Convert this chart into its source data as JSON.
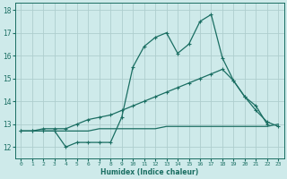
{
  "xlabel": "Humidex (Indice chaleur)",
  "bg_color": "#ceeaea",
  "grid_color": "#aecece",
  "line_color": "#1a6e62",
  "xlim": [
    -0.5,
    23.5
  ],
  "ylim": [
    11.5,
    18.3
  ],
  "yticks": [
    12,
    13,
    14,
    15,
    16,
    17,
    18
  ],
  "xticks": [
    0,
    1,
    2,
    3,
    4,
    5,
    6,
    7,
    8,
    9,
    10,
    11,
    12,
    13,
    14,
    15,
    16,
    17,
    18,
    19,
    20,
    21,
    22,
    23
  ],
  "series1_x": [
    0,
    1,
    2,
    3,
    4,
    5,
    6,
    7,
    8,
    9,
    10,
    11,
    12,
    13,
    14,
    15,
    16,
    17,
    18,
    19,
    20,
    21,
    22,
    23
  ],
  "series1_y": [
    12.7,
    12.7,
    12.7,
    12.7,
    12.0,
    12.2,
    12.2,
    12.2,
    12.2,
    13.3,
    15.5,
    16.4,
    16.8,
    17.0,
    16.1,
    16.5,
    17.5,
    17.8,
    15.9,
    14.9,
    14.2,
    13.8,
    13.0,
    null
  ],
  "series2_x": [
    0,
    1,
    2,
    3,
    4,
    5,
    6,
    7,
    8,
    9,
    10,
    11,
    12,
    13,
    14,
    15,
    16,
    17,
    18,
    19,
    20,
    21,
    22,
    23
  ],
  "series2_y": [
    12.7,
    12.7,
    12.8,
    12.8,
    12.8,
    13.0,
    13.2,
    13.3,
    13.4,
    13.6,
    13.8,
    14.0,
    14.2,
    14.4,
    14.6,
    14.8,
    15.0,
    15.2,
    15.4,
    14.9,
    14.2,
    13.6,
    13.1,
    12.9
  ],
  "series3_x": [
    0,
    1,
    2,
    3,
    4,
    5,
    6,
    7,
    8,
    9,
    10,
    11,
    12,
    13,
    14,
    15,
    16,
    17,
    18,
    19,
    20,
    21,
    22,
    23
  ],
  "series3_y": [
    12.7,
    12.7,
    12.7,
    12.7,
    12.7,
    12.7,
    12.7,
    12.8,
    12.8,
    12.8,
    12.8,
    12.8,
    12.8,
    12.9,
    12.9,
    12.9,
    12.9,
    12.9,
    12.9,
    12.9,
    12.9,
    12.9,
    12.9,
    13.0
  ]
}
